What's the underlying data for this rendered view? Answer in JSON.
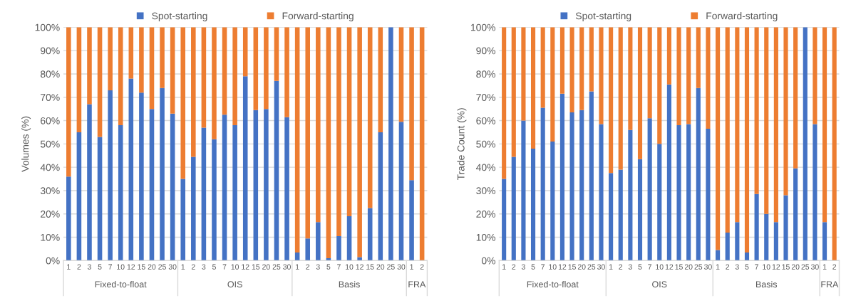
{
  "chart_data": [
    {
      "type": "bar",
      "stacked": true,
      "ylabel": "Volumes (%)",
      "categories": [
        "1",
        "2",
        "3",
        "5",
        "7",
        "10",
        "12",
        "15",
        "20",
        "25",
        "30",
        "1",
        "2",
        "3",
        "5",
        "7",
        "10",
        "12",
        "15",
        "20",
        "25",
        "30",
        "1",
        "2",
        "3",
        "5",
        "7",
        "10",
        "12",
        "15",
        "20",
        "25",
        "30",
        "1",
        "2"
      ],
      "series": [
        {
          "name": "Spot-starting",
          "color": "#4472c4",
          "values": [
            36,
            55,
            67,
            53,
            73,
            58,
            78,
            72,
            65,
            74,
            63,
            35,
            44.5,
            57,
            52,
            62.5,
            58,
            79,
            64.5,
            65,
            77,
            61.5,
            3.5,
            9.5,
            16.5,
            1,
            10.5,
            19,
            1.5,
            22.5,
            55,
            100,
            59.5,
            34.5,
            0
          ]
        },
        {
          "name": "Forward-starting",
          "color": "#ed7d31",
          "values": [
            64,
            45,
            33,
            47,
            27,
            42,
            22,
            28,
            35,
            26,
            37,
            65,
            55.5,
            43,
            48,
            37.5,
            42,
            21,
            35.5,
            35,
            23,
            38.5,
            96.5,
            90.5,
            83.5,
            99,
            89.5,
            81,
            98.5,
            77.5,
            45,
            0,
            40.5,
            65.5,
            100
          ]
        }
      ],
      "ylim": [
        0,
        100
      ],
      "yticks": [
        {
          "value": 0,
          "label": "0%"
        },
        {
          "value": 10,
          "label": "10%"
        },
        {
          "value": 20,
          "label": "20%"
        },
        {
          "value": 30,
          "label": "30%"
        },
        {
          "value": 40,
          "label": "40%"
        },
        {
          "value": 50,
          "label": "50%"
        },
        {
          "value": 60,
          "label": "60%"
        },
        {
          "value": 70,
          "label": "70%"
        },
        {
          "value": 80,
          "label": "80%"
        },
        {
          "value": 90,
          "label": "90%"
        },
        {
          "value": 100,
          "label": "100%"
        }
      ],
      "grid": "y",
      "legend": "top",
      "annotations": [
        "Fixed-to-float",
        "OIS",
        "Basis",
        "FRA"
      ]
    },
    {
      "type": "bar",
      "stacked": true,
      "ylabel": "Trade Count (%)",
      "categories": [
        "1",
        "2",
        "3",
        "5",
        "7",
        "10",
        "12",
        "15",
        "20",
        "25",
        "30",
        "1",
        "2",
        "3",
        "5",
        "7",
        "10",
        "12",
        "15",
        "20",
        "25",
        "30",
        "1",
        "2",
        "3",
        "5",
        "7",
        "10",
        "12",
        "15",
        "20",
        "25",
        "30",
        "1",
        "2"
      ],
      "series": [
        {
          "name": "Spot-starting",
          "color": "#4472c4",
          "values": [
            35,
            44.5,
            60,
            48,
            65.5,
            51,
            71.5,
            63.5,
            64.5,
            72.5,
            58.5,
            37.5,
            39,
            56,
            43.5,
            61,
            50,
            75.5,
            58,
            58.5,
            74,
            56.5,
            4.5,
            12,
            16.5,
            3.5,
            28.5,
            20,
            16.5,
            28,
            39.5,
            100,
            58.5,
            16.5,
            0
          ]
        },
        {
          "name": "Forward-starting",
          "color": "#ed7d31",
          "values": [
            65,
            55.5,
            40,
            52,
            34.5,
            49,
            28.5,
            36.5,
            35.5,
            27.5,
            41.5,
            62.5,
            61,
            44,
            56.5,
            39,
            50,
            24.5,
            42,
            41.5,
            26,
            43.5,
            95.5,
            88,
            83.5,
            96.5,
            71.5,
            80,
            83.5,
            72,
            60.5,
            0,
            41.5,
            83.5,
            100
          ]
        }
      ],
      "ylim": [
        0,
        100
      ],
      "yticks": [
        {
          "value": 0,
          "label": "0%"
        },
        {
          "value": 10,
          "label": "10%"
        },
        {
          "value": 20,
          "label": "20%"
        },
        {
          "value": 30,
          "label": "30%"
        },
        {
          "value": 40,
          "label": "40%"
        },
        {
          "value": 50,
          "label": "50%"
        },
        {
          "value": 60,
          "label": "60%"
        },
        {
          "value": 70,
          "label": "70%"
        },
        {
          "value": 80,
          "label": "80%"
        },
        {
          "value": 90,
          "label": "90%"
        },
        {
          "value": 100,
          "label": "100%"
        }
      ],
      "grid": "y",
      "legend": "top",
      "annotations": [
        "Fixed-to-float",
        "OIS",
        "Basis",
        "FRA"
      ]
    }
  ]
}
